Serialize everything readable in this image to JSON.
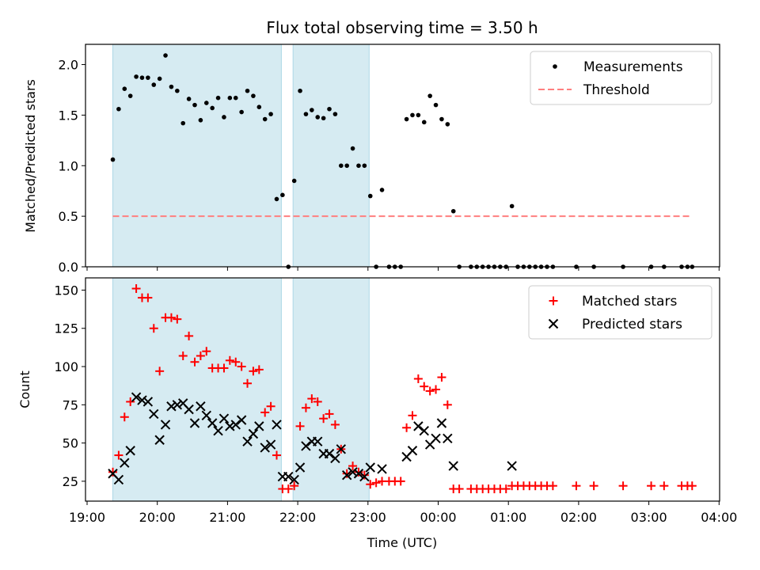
{
  "title": "Flux total observing time = 3.50 h",
  "x_label": "Time (UTC)",
  "x_tick_labels": [
    "19:00",
    "20:00",
    "21:00",
    "22:00",
    "23:00",
    "00:00",
    "01:00",
    "02:00",
    "03:00",
    "04:00"
  ],
  "observing_windows": [
    [
      "19:22",
      "21:46"
    ],
    [
      "21:56",
      "23:01"
    ]
  ],
  "colors": {
    "window_fill": "#add8e6",
    "measurement": "#000000",
    "threshold": "#ff7f7f",
    "matched": "#ff0000",
    "predicted": "#000000"
  },
  "chart_data": [
    {
      "type": "scatter",
      "ylabel": "Matched/Predicted stars",
      "ylim": [
        0,
        2.2
      ],
      "y_ticks": [
        "0.0",
        "0.5",
        "1.0",
        "1.5",
        "2.0"
      ],
      "legend": {
        "placement": "upper-right",
        "entries": [
          "Measurements",
          "Threshold"
        ]
      },
      "threshold": {
        "name": "Threshold",
        "value": 0.5,
        "x_range": [
          "19:22",
          "03:37"
        ]
      },
      "series": [
        {
          "name": "Measurements",
          "marker": "dot",
          "points": [
            [
              "19:22",
              1.06
            ],
            [
              "19:27",
              1.56
            ],
            [
              "19:32",
              1.76
            ],
            [
              "19:37",
              1.69
            ],
            [
              "19:42",
              1.88
            ],
            [
              "19:47",
              1.87
            ],
            [
              "19:52",
              1.87
            ],
            [
              "19:57",
              1.8
            ],
            [
              "20:02",
              1.86
            ],
            [
              "20:07",
              2.09
            ],
            [
              "20:12",
              1.78
            ],
            [
              "20:17",
              1.74
            ],
            [
              "20:22",
              1.42
            ],
            [
              "20:27",
              1.66
            ],
            [
              "20:32",
              1.6
            ],
            [
              "20:37",
              1.45
            ],
            [
              "20:42",
              1.62
            ],
            [
              "20:47",
              1.57
            ],
            [
              "20:52",
              1.67
            ],
            [
              "20:57",
              1.48
            ],
            [
              "21:02",
              1.67
            ],
            [
              "21:07",
              1.67
            ],
            [
              "21:12",
              1.53
            ],
            [
              "21:17",
              1.74
            ],
            [
              "21:22",
              1.69
            ],
            [
              "21:27",
              1.58
            ],
            [
              "21:32",
              1.46
            ],
            [
              "21:37",
              1.51
            ],
            [
              "21:42",
              0.67
            ],
            [
              "21:47",
              0.71
            ],
            [
              "21:52",
              0.0
            ],
            [
              "21:57",
              0.85
            ],
            [
              "22:02",
              1.74
            ],
            [
              "22:07",
              1.51
            ],
            [
              "22:12",
              1.55
            ],
            [
              "22:17",
              1.48
            ],
            [
              "22:22",
              1.47
            ],
            [
              "22:27",
              1.56
            ],
            [
              "22:32",
              1.51
            ],
            [
              "22:37",
              1.0
            ],
            [
              "22:42",
              1.0
            ],
            [
              "22:47",
              1.17
            ],
            [
              "22:52",
              1.0
            ],
            [
              "22:57",
              1.0
            ],
            [
              "23:02",
              0.7
            ],
            [
              "23:07",
              0.0
            ],
            [
              "23:12",
              0.76
            ],
            [
              "23:18",
              0.0
            ],
            [
              "23:23",
              0.0
            ],
            [
              "23:28",
              0.0
            ],
            [
              "23:33",
              1.46
            ],
            [
              "23:38",
              1.5
            ],
            [
              "23:43",
              1.5
            ],
            [
              "23:48",
              1.43
            ],
            [
              "23:53",
              1.69
            ],
            [
              "23:58",
              1.6
            ],
            [
              "00:03",
              1.46
            ],
            [
              "00:08",
              1.41
            ],
            [
              "00:13",
              0.55
            ],
            [
              "00:18",
              0.0
            ],
            [
              "00:28",
              0.0
            ],
            [
              "00:33",
              0.0
            ],
            [
              "00:38",
              0.0
            ],
            [
              "00:43",
              0.0
            ],
            [
              "00:48",
              0.0
            ],
            [
              "00:53",
              0.0
            ],
            [
              "00:58",
              0.0
            ],
            [
              "01:03",
              0.6
            ],
            [
              "01:08",
              0.0
            ],
            [
              "01:13",
              0.0
            ],
            [
              "01:18",
              0.0
            ],
            [
              "01:23",
              0.0
            ],
            [
              "01:28",
              0.0
            ],
            [
              "01:33",
              0.0
            ],
            [
              "01:38",
              0.0
            ],
            [
              "01:58",
              0.0
            ],
            [
              "02:13",
              0.0
            ],
            [
              "02:38",
              0.0
            ],
            [
              "03:02",
              0.0
            ],
            [
              "03:13",
              0.0
            ],
            [
              "03:28",
              0.0
            ],
            [
              "03:33",
              0.0
            ],
            [
              "03:37",
              0.0
            ]
          ]
        }
      ]
    },
    {
      "type": "scatter",
      "ylabel": "Count",
      "ylim": [
        12,
        158
      ],
      "y_ticks": [
        "25",
        "50",
        "75",
        "100",
        "125",
        "150"
      ],
      "legend": {
        "placement": "upper-right",
        "entries": [
          "Matched stars",
          "Predicted stars"
        ]
      },
      "series": [
        {
          "name": "Matched stars",
          "marker": "plus",
          "points": [
            [
              "19:22",
              31
            ],
            [
              "19:27",
              42
            ],
            [
              "19:32",
              67
            ],
            [
              "19:37",
              77
            ],
            [
              "19:42",
              151
            ],
            [
              "19:47",
              145
            ],
            [
              "19:52",
              145
            ],
            [
              "19:57",
              125
            ],
            [
              "20:02",
              97
            ],
            [
              "20:07",
              132
            ],
            [
              "20:12",
              132
            ],
            [
              "20:17",
              131
            ],
            [
              "20:22",
              107
            ],
            [
              "20:27",
              120
            ],
            [
              "20:32",
              103
            ],
            [
              "20:37",
              107
            ],
            [
              "20:42",
              110
            ],
            [
              "20:47",
              99
            ],
            [
              "20:52",
              99
            ],
            [
              "20:57",
              99
            ],
            [
              "21:02",
              104
            ],
            [
              "21:07",
              103
            ],
            [
              "21:12",
              100
            ],
            [
              "21:17",
              89
            ],
            [
              "21:22",
              97
            ],
            [
              "21:27",
              98
            ],
            [
              "21:32",
              70
            ],
            [
              "21:37",
              74
            ],
            [
              "21:42",
              42
            ],
            [
              "21:47",
              20
            ],
            [
              "21:52",
              20
            ],
            [
              "21:57",
              22
            ],
            [
              "22:02",
              61
            ],
            [
              "22:07",
              73
            ],
            [
              "22:12",
              79
            ],
            [
              "22:17",
              77
            ],
            [
              "22:22",
              66
            ],
            [
              "22:27",
              69
            ],
            [
              "22:32",
              62
            ],
            [
              "22:37",
              46
            ],
            [
              "22:42",
              30
            ],
            [
              "22:47",
              35
            ],
            [
              "22:52",
              31
            ],
            [
              "22:57",
              29
            ],
            [
              "23:02",
              23
            ],
            [
              "23:07",
              24
            ],
            [
              "23:12",
              25
            ],
            [
              "23:18",
              25
            ],
            [
              "23:23",
              25
            ],
            [
              "23:28",
              25
            ],
            [
              "23:33",
              60
            ],
            [
              "23:38",
              68
            ],
            [
              "23:43",
              92
            ],
            [
              "23:48",
              87
            ],
            [
              "23:53",
              84
            ],
            [
              "23:58",
              85
            ],
            [
              "00:03",
              93
            ],
            [
              "00:08",
              75
            ],
            [
              "00:13",
              20
            ],
            [
              "00:18",
              20
            ],
            [
              "00:28",
              20
            ],
            [
              "00:33",
              20
            ],
            [
              "00:38",
              20
            ],
            [
              "00:43",
              20
            ],
            [
              "00:48",
              20
            ],
            [
              "00:53",
              20
            ],
            [
              "00:58",
              20
            ],
            [
              "01:03",
              22
            ],
            [
              "01:08",
              22
            ],
            [
              "01:13",
              22
            ],
            [
              "01:18",
              22
            ],
            [
              "01:23",
              22
            ],
            [
              "01:28",
              22
            ],
            [
              "01:33",
              22
            ],
            [
              "01:38",
              22
            ],
            [
              "01:58",
              22
            ],
            [
              "02:13",
              22
            ],
            [
              "02:38",
              22
            ],
            [
              "03:02",
              22
            ],
            [
              "03:13",
              22
            ],
            [
              "03:28",
              22
            ],
            [
              "03:33",
              22
            ],
            [
              "03:37",
              22
            ]
          ]
        },
        {
          "name": "Predicted stars",
          "marker": "x",
          "points": [
            [
              "19:22",
              30
            ],
            [
              "19:27",
              26
            ],
            [
              "19:32",
              37
            ],
            [
              "19:37",
              45
            ],
            [
              "19:42",
              80
            ],
            [
              "19:47",
              78
            ],
            [
              "19:52",
              77
            ],
            [
              "19:57",
              69
            ],
            [
              "20:02",
              52
            ],
            [
              "20:07",
              62
            ],
            [
              "20:12",
              74
            ],
            [
              "20:17",
              75
            ],
            [
              "20:22",
              76
            ],
            [
              "20:27",
              72
            ],
            [
              "20:32",
              63
            ],
            [
              "20:37",
              74
            ],
            [
              "20:42",
              68
            ],
            [
              "20:47",
              63
            ],
            [
              "20:52",
              58
            ],
            [
              "20:57",
              66
            ],
            [
              "21:02",
              61
            ],
            [
              "21:07",
              62
            ],
            [
              "21:12",
              65
            ],
            [
              "21:17",
              51
            ],
            [
              "21:22",
              56
            ],
            [
              "21:27",
              61
            ],
            [
              "21:32",
              47
            ],
            [
              "21:37",
              49
            ],
            [
              "21:42",
              62
            ],
            [
              "21:47",
              28
            ],
            [
              "21:52",
              28
            ],
            [
              "21:57",
              26
            ],
            [
              "22:02",
              34
            ],
            [
              "22:07",
              48
            ],
            [
              "22:12",
              51
            ],
            [
              "22:17",
              51
            ],
            [
              "22:22",
              43
            ],
            [
              "22:27",
              43
            ],
            [
              "22:32",
              40
            ],
            [
              "22:37",
              46
            ],
            [
              "22:42",
              29
            ],
            [
              "22:47",
              31
            ],
            [
              "22:52",
              30
            ],
            [
              "22:57",
              28
            ],
            [
              "23:02",
              34
            ],
            [
              "23:12",
              33
            ],
            [
              "23:33",
              41
            ],
            [
              "23:38",
              45
            ],
            [
              "23:43",
              61
            ],
            [
              "23:48",
              58
            ],
            [
              "23:53",
              49
            ],
            [
              "23:58",
              53
            ],
            [
              "00:03",
              63
            ],
            [
              "00:08",
              53
            ],
            [
              "00:13",
              35
            ],
            [
              "01:03",
              35
            ]
          ]
        }
      ]
    }
  ]
}
